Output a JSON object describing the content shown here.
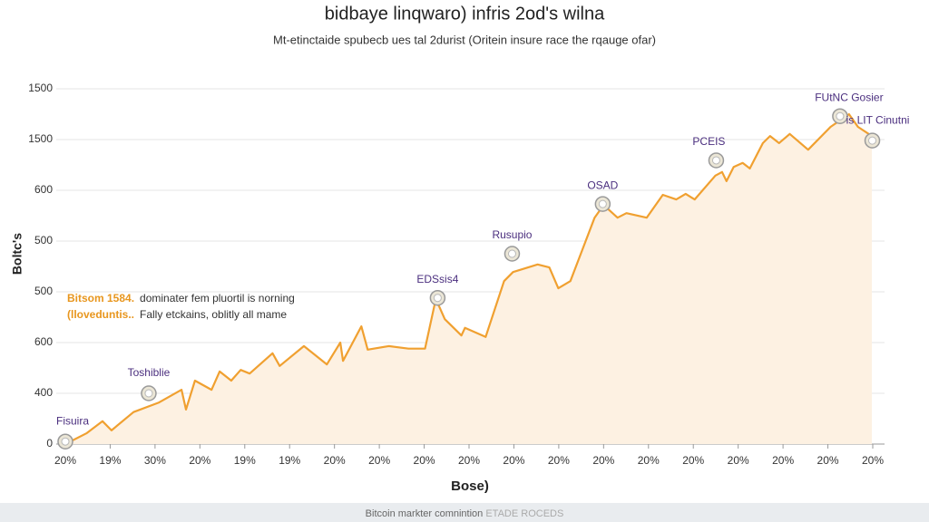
{
  "chart_data": {
    "type": "area",
    "title": "bidbaye linqwaro) infris 2od's wilna",
    "subtitle": "Mt-etinctaide spubecb ues tal 2durist (Oritein insure race the rqauge ofar)",
    "y_label": "Boltc's",
    "x_label": "Bose)",
    "footer": "Bitcoin markter comnintion",
    "footer_faded": "ETADE ROCEDS",
    "color": "#f0a030",
    "fill": "#fdf1e2",
    "grid": true,
    "xlim": [
      0,
      18
    ],
    "ylim": [
      0,
      7
    ],
    "xticks": [
      {
        "value": 0,
        "label": "20%"
      },
      {
        "value": 1,
        "label": "19%"
      },
      {
        "value": 2,
        "label": "30%"
      },
      {
        "value": 3,
        "label": "20%"
      },
      {
        "value": 4,
        "label": "19%"
      },
      {
        "value": 5,
        "label": "19%"
      },
      {
        "value": 6,
        "label": "20%"
      },
      {
        "value": 7,
        "label": "20%"
      },
      {
        "value": 8,
        "label": "20%"
      },
      {
        "value": 9,
        "label": "20%"
      },
      {
        "value": 10,
        "label": "20%"
      },
      {
        "value": 11,
        "label": "20%"
      },
      {
        "value": 12,
        "label": "20%"
      },
      {
        "value": 13,
        "label": "20%"
      },
      {
        "value": 14,
        "label": "20%"
      },
      {
        "value": 15,
        "label": "20%"
      },
      {
        "value": 16,
        "label": "20%"
      },
      {
        "value": 17,
        "label": "20%"
      },
      {
        "value": 18,
        "label": "20%"
      }
    ],
    "yticks": [
      0,
      {
        "value": 1,
        "label": "400"
      },
      {
        "value": 2,
        "label": "600"
      },
      {
        "value": 3,
        "label": "500"
      },
      {
        "value": 4,
        "label": "500"
      },
      {
        "value": 5,
        "label": "600"
      },
      {
        "value": 6,
        "label": "1500"
      },
      {
        "value": 7,
        "label": "1500"
      }
    ],
    "x": [
      0,
      0.47,
      0.83,
      1.03,
      1.52,
      2.09,
      2.59,
      2.69,
      2.89,
      3.26,
      3.44,
      3.7,
      3.91,
      4.11,
      4.62,
      4.78,
      5.32,
      5.83,
      6.13,
      6.19,
      6.6,
      6.74,
      7.21,
      7.65,
      8.02,
      8.26,
      8.46,
      8.83,
      8.91,
      9.37,
      9.78,
      9.98,
      10.53,
      10.79,
      10.99,
      11.26,
      11.8,
      12.0,
      12.31,
      12.51,
      12.96,
      13.32,
      13.62,
      13.83,
      14.03,
      14.49,
      14.64,
      14.74,
      14.9,
      15.1,
      15.26,
      15.55,
      15.71,
      15.91,
      16.15,
      16.56,
      17.06,
      17.47,
      17.67,
      17.98
    ],
    "values": [
      0,
      0.21,
      0.45,
      0.27,
      0.63,
      0.82,
      1.07,
      0.68,
      1.25,
      1.07,
      1.43,
      1.25,
      1.46,
      1.39,
      1.79,
      1.54,
      1.93,
      1.57,
      2.0,
      1.64,
      2.32,
      1.86,
      1.93,
      1.88,
      1.88,
      2.86,
      2.46,
      2.14,
      2.29,
      2.11,
      3.21,
      3.39,
      3.54,
      3.48,
      3.07,
      3.21,
      4.46,
      4.71,
      4.46,
      4.55,
      4.46,
      4.91,
      4.82,
      4.93,
      4.82,
      5.29,
      5.36,
      5.18,
      5.46,
      5.54,
      5.43,
      5.93,
      6.07,
      5.93,
      6.11,
      5.8,
      6.25,
      6.5,
      6.25,
      6.07
    ],
    "annotations": [
      {
        "text": "Fisuira",
        "x": 0,
        "y": 0.05
      },
      {
        "text": "Toshiblie",
        "x": 1.86,
        "y": 1.0
      },
      {
        "text": "EDSsis4",
        "x": 8.3,
        "y": 2.88
      },
      {
        "text": "Rusupio",
        "x": 9.96,
        "y": 3.75
      },
      {
        "text": "OSAD",
        "x": 11.98,
        "y": 4.73
      },
      {
        "text": "PCEIS",
        "x": 14.51,
        "y": 5.59
      },
      {
        "text": "FUtNC Gosier",
        "x": 17.27,
        "y": 6.46
      },
      {
        "text": "is LIT Cinutni",
        "x": 17.99,
        "y": 5.98
      }
    ],
    "notes": [
      {
        "highlight": "Bitsom 1584.",
        "text": "dominater fem pluortil is norning"
      },
      {
        "highlight": "(lloveduntis..",
        "text": "Fally etckains, oblitly all mame"
      }
    ]
  }
}
